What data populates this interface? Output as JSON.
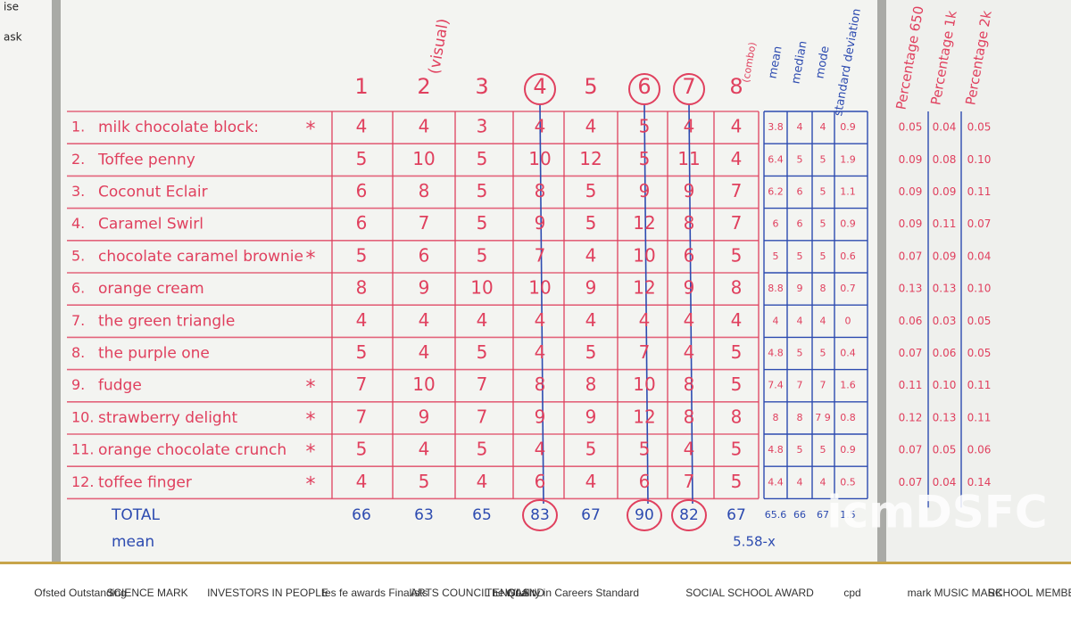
{
  "edge_text": [
    "ise",
    "ask"
  ],
  "column_headers": [
    "1",
    "2",
    "3",
    "4",
    "5",
    "6",
    "7",
    "8"
  ],
  "visual_note": "(visual)",
  "combo_note": "(combo)",
  "stat_headers": [
    "mean",
    "median",
    "mode",
    "standard deviation"
  ],
  "percentage_headers": [
    "Percentage 650",
    "Percentage 1k",
    "Percentage 2k"
  ],
  "rows": [
    {
      "number": "1.",
      "name": "milk chocolate block:",
      "star": "*",
      "scores": [
        4,
        4,
        3,
        4,
        4,
        5,
        4,
        4
      ],
      "stats": [
        "3.8",
        "4",
        "4",
        "0.9"
      ],
      "percentages": [
        "0.05",
        "0.04",
        "0.05"
      ]
    },
    {
      "number": "2.",
      "name": "Toffee penny",
      "scores": [
        5,
        10,
        5,
        10,
        12,
        5,
        11,
        4
      ],
      "stats": [
        "6.4",
        "5",
        "5",
        "1.9"
      ],
      "percentages": [
        "0.09",
        "0.08",
        "0.10"
      ]
    },
    {
      "number": "3.",
      "name": "Coconut Eclair",
      "scores": [
        6,
        8,
        5,
        8,
        5,
        9,
        9,
        7
      ],
      "stats": [
        "6.2",
        "6",
        "5",
        "1.1"
      ],
      "percentages": [
        "0.09",
        "0.09",
        "0.11"
      ]
    },
    {
      "number": "4.",
      "name": "Caramel Swirl",
      "scores": [
        6,
        7,
        5,
        9,
        5,
        12,
        8,
        7
      ],
      "stats": [
        "6",
        "6",
        "5",
        "0.9"
      ],
      "percentages": [
        "0.09",
        "0.11",
        "0.07"
      ]
    },
    {
      "number": "5.",
      "name": "chocolate caramel brownie",
      "star": "*",
      "scores": [
        5,
        6,
        5,
        7,
        4,
        10,
        6,
        5
      ],
      "stats": [
        "5",
        "5",
        "5",
        "0.6"
      ],
      "percentages": [
        "0.07",
        "0.09",
        "0.04"
      ]
    },
    {
      "number": "6.",
      "name": "orange cream",
      "scores": [
        8,
        9,
        10,
        10,
        9,
        12,
        9,
        8
      ],
      "stats": [
        "8.8",
        "9",
        "8",
        "0.7"
      ],
      "percentages": [
        "0.13",
        "0.13",
        "0.10"
      ]
    },
    {
      "number": "7.",
      "name": "the green triangle",
      "scores": [
        4,
        4,
        4,
        4,
        4,
        4,
        4,
        4
      ],
      "stats": [
        "4",
        "4",
        "4",
        "0"
      ],
      "percentages": [
        "0.06",
        "0.03",
        "0.05"
      ]
    },
    {
      "number": "8.",
      "name": "the purple one",
      "scores": [
        5,
        4,
        5,
        4,
        5,
        7,
        4,
        5
      ],
      "stats": [
        "4.8",
        "5",
        "5",
        "0.4"
      ],
      "percentages": [
        "0.07",
        "0.06",
        "0.05"
      ]
    },
    {
      "number": "9.",
      "name": "fudge",
      "star": "*",
      "scores": [
        7,
        10,
        7,
        8,
        8,
        10,
        8,
        5
      ],
      "stats": [
        "7.4",
        "7",
        "7",
        "1.6"
      ],
      "percentages": [
        "0.11",
        "0.10",
        "0.11"
      ]
    },
    {
      "number": "10.",
      "name": "strawberry delight",
      "star": "*",
      "scores": [
        7,
        9,
        7,
        9,
        9,
        12,
        8,
        8
      ],
      "stats": [
        "8",
        "8",
        "7 9",
        "0.8"
      ],
      "percentages": [
        "0.12",
        "0.13",
        "0.11"
      ]
    },
    {
      "number": "11.",
      "name": "orange chocolate crunch",
      "star": "*",
      "scores": [
        5,
        4,
        5,
        4,
        5,
        5,
        4,
        5
      ],
      "stats": [
        "4.8",
        "5",
        "5",
        "0.9"
      ],
      "percentages": [
        "0.07",
        "0.05",
        "0.06"
      ]
    },
    {
      "number": "12.",
      "name": "toffee finger",
      "star": "*",
      "scores": [
        4,
        5,
        4,
        6,
        4,
        6,
        7,
        5
      ],
      "stats": [
        "4.4",
        "4",
        "4",
        "0.5"
      ],
      "percentages": [
        "0.07",
        "0.04",
        "0.14"
      ]
    }
  ],
  "totals": {
    "label": "TOTAL",
    "scores": [
      66,
      63,
      65,
      83,
      67,
      90,
      82,
      67
    ],
    "stats": [
      "65.6",
      "66",
      "67",
      "1.5"
    ]
  },
  "mean_row": {
    "label": "mean",
    "value": "5.58-x"
  },
  "watermark": "icmDSFC",
  "logos": [
    "Ofsted Outstanding",
    "SCIENCE MARK",
    "INVESTORS IN PEOPLE",
    "tes fe awards Finalists",
    "ARTS COUNCIL ENGLAND",
    "WAS",
    "The Quality in Careers Standard",
    "SOCIAL SCHOOL AWARD",
    "cpd",
    "mark",
    "MUSIC MARK",
    "SCHOOL MEMBER"
  ]
}
